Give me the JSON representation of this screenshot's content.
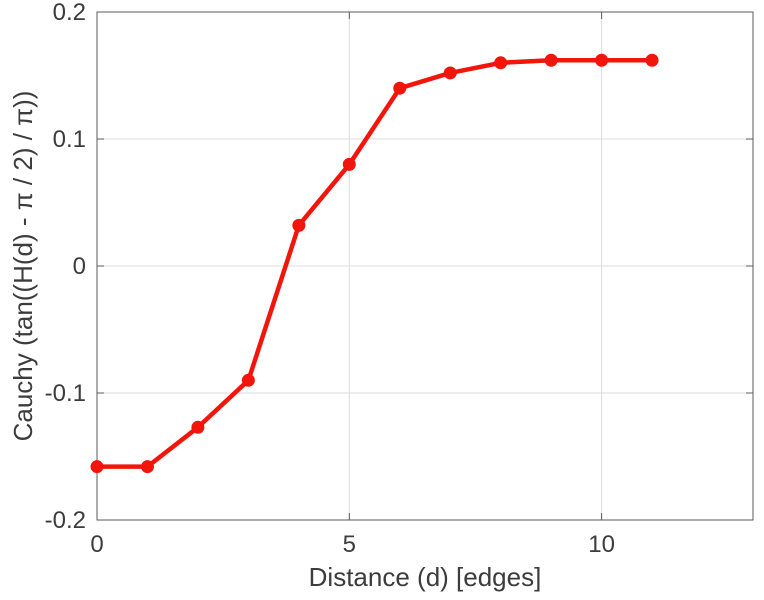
{
  "figure": {
    "background": "#ffffff"
  },
  "chart_data": {
    "type": "line",
    "title": "",
    "xlabel": "Distance (d) [edges]",
    "ylabel": "Cauchy (tan((H(d) - π / 2) / π))",
    "x": [
      0,
      1,
      2,
      3,
      4,
      5,
      6,
      7,
      8,
      9,
      10,
      11
    ],
    "values": [
      -0.158,
      -0.158,
      -0.127,
      -0.09,
      0.032,
      0.08,
      0.14,
      0.152,
      0.16,
      0.162,
      0.162,
      0.162
    ],
    "series_name": "Cauchy (tan((H(d) - π / 2) / π))",
    "xlim": [
      0,
      13
    ],
    "ylim": [
      -0.2,
      0.2
    ],
    "xticks": [
      0,
      5,
      10
    ],
    "xtick_labels": [
      "0",
      "5",
      "10"
    ],
    "yticks": [
      -0.2,
      -0.1,
      0,
      0.1,
      0.2
    ],
    "ytick_labels": [
      "-0.2",
      "-0.1",
      "0",
      "0.1",
      "0.2"
    ],
    "grid": true,
    "legend": "none",
    "line_color": "#f2150c",
    "line_width": 4.5,
    "marker": "o",
    "marker_color": "#f2150c",
    "colors": {
      "grid": "#dcdcdc",
      "axis": "#5b5b5b",
      "text": "#3c3c3c",
      "background": "#ffffff"
    }
  }
}
